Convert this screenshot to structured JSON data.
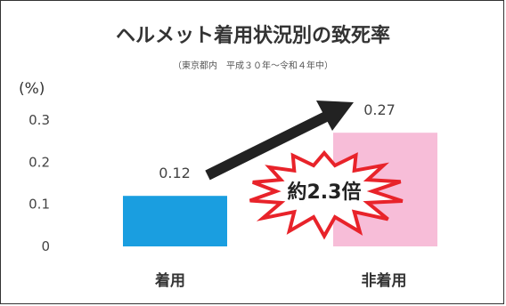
{
  "chart_data": {
    "type": "bar",
    "title": "ヘルメット着用状況別の致死率",
    "subtitle": "（東京都内　平成３０年～令和４年中）",
    "ylabel": "(%)",
    "categories": [
      "着用",
      "非着用"
    ],
    "values": [
      0.12,
      0.27
    ],
    "data_labels": [
      "0.12",
      "0.27"
    ],
    "ylim": [
      0,
      0.3
    ],
    "yticks": [
      {
        "value": 0,
        "label": "0"
      },
      {
        "value": 0.1,
        "label": "0.1"
      },
      {
        "value": 0.2,
        "label": "0.2"
      },
      {
        "value": 0.3,
        "label": "0.3"
      }
    ],
    "colors": [
      "#1a9ee0",
      "#f7bdd8"
    ],
    "grid": false,
    "annotation": "約2.3倍",
    "annotation_burst_color": "#e8232a",
    "arrow_color": "#222222"
  }
}
